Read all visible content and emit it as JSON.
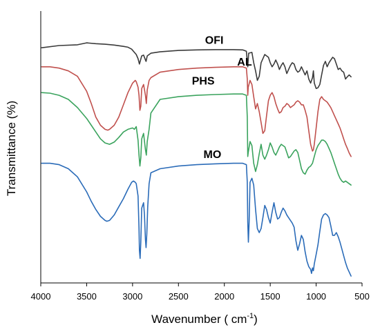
{
  "chart_data": {
    "type": "line",
    "title": "",
    "xlabel": "Wavenumber ( cm",
    "xlabel_sup": "-1",
    "xlabel_close": ")",
    "ylabel": "Transmittance (%)",
    "x_reversed": true,
    "xlim": [
      4000,
      500
    ],
    "xticks": [
      "4000",
      "3500",
      "3000",
      "2500",
      "2000",
      "1500",
      "1000",
      "500"
    ],
    "xtick_values": [
      4000,
      3500,
      3000,
      2500,
      2000,
      1500,
      1000,
      500
    ],
    "y_ticks_shown": false,
    "ylim": [
      0,
      100
    ],
    "grid": false,
    "legend": "none",
    "series": [
      {
        "name": "OFI",
        "color": "#3a3a3a",
        "label_at": [
          2110,
          88
        ],
        "x": [
          3990,
          3800,
          3600,
          3500,
          3400,
          3300,
          3200,
          3100,
          3050,
          3010,
          2960,
          2940,
          2925,
          2900,
          2880,
          2860,
          2853,
          2840,
          2800,
          2700,
          2500,
          2300,
          2100,
          1900,
          1800,
          1760,
          1745,
          1735,
          1700,
          1680,
          1660,
          1640,
          1620,
          1600,
          1560,
          1520,
          1500,
          1480,
          1460,
          1440,
          1420,
          1400,
          1380,
          1360,
          1340,
          1320,
          1300,
          1280,
          1260,
          1240,
          1220,
          1200,
          1180,
          1160,
          1140,
          1120,
          1100,
          1080,
          1060,
          1040,
          1030,
          1020,
          1000,
          980,
          960,
          940,
          920,
          900,
          880,
          860,
          840,
          820,
          800,
          780,
          760,
          740,
          720,
          700,
          680,
          660,
          640,
          620
        ],
        "y": [
          86.5,
          87.3,
          87.6,
          88.3,
          88.0,
          87.8,
          87.5,
          87.0,
          86.7,
          86.0,
          84.0,
          82.5,
          80.5,
          83.5,
          83.8,
          82.0,
          81.5,
          83.5,
          84.5,
          85.0,
          85.5,
          85.7,
          85.8,
          85.8,
          85.7,
          85.2,
          79.5,
          84.5,
          84.8,
          81.0,
          78.0,
          74.5,
          76.0,
          81.0,
          84.0,
          83.0,
          81.0,
          79.5,
          80.5,
          82.0,
          80.5,
          78.5,
          80.0,
          81.0,
          79.5,
          77.0,
          78.5,
          80.0,
          81.0,
          80.5,
          78.5,
          77.5,
          78.0,
          79.5,
          78.0,
          76.5,
          78.0,
          75.0,
          73.5,
          75.5,
          78.0,
          73.5,
          71.5,
          71.8,
          73.0,
          76.5,
          80.0,
          81.5,
          79.5,
          81.0,
          82.0,
          83.0,
          82.5,
          80.5,
          78.5,
          79.0,
          78.0,
          77.5,
          75.0,
          75.8,
          76.5,
          75.8
        ]
      },
      {
        "name": "AL",
        "color": "#c0504d",
        "label_at": [
          1780,
          80
        ],
        "x": [
          3990,
          3900,
          3800,
          3700,
          3600,
          3500,
          3450,
          3400,
          3350,
          3300,
          3270,
          3250,
          3200,
          3150,
          3100,
          3050,
          3000,
          2970,
          2960,
          2940,
          2930,
          2920,
          2910,
          2900,
          2880,
          2860,
          2850,
          2840,
          2820,
          2800,
          2700,
          2500,
          2300,
          2100,
          1900,
          1800,
          1760,
          1750,
          1745,
          1740,
          1720,
          1700,
          1680,
          1660,
          1640,
          1620,
          1600,
          1580,
          1560,
          1540,
          1520,
          1500,
          1480,
          1460,
          1440,
          1420,
          1400,
          1380,
          1360,
          1340,
          1320,
          1300,
          1280,
          1260,
          1240,
          1220,
          1200,
          1180,
          1160,
          1140,
          1120,
          1100,
          1080,
          1060,
          1040,
          1030,
          1020,
          1000,
          980,
          960,
          940,
          920,
          900,
          880,
          860,
          840,
          820,
          800,
          780,
          760,
          740,
          720,
          700,
          680,
          660,
          640,
          620
        ],
        "y": [
          79.5,
          79.5,
          79.0,
          78.0,
          76.0,
          70.5,
          66.0,
          61.0,
          58.0,
          56.5,
          56.2,
          56.5,
          58.0,
          61.0,
          65.5,
          70.0,
          73.5,
          74.5,
          74.0,
          72.0,
          69.0,
          63.5,
          65.0,
          71.5,
          73.0,
          69.0,
          66.0,
          71.0,
          74.5,
          75.5,
          77.5,
          78.5,
          79.0,
          79.3,
          79.5,
          79.5,
          79.0,
          75.0,
          69.0,
          72.0,
          74.5,
          73.0,
          68.5,
          64.0,
          66.0,
          63.0,
          59.0,
          55.0,
          56.0,
          61.5,
          67.0,
          69.0,
          70.0,
          68.5,
          66.0,
          64.0,
          62.5,
          63.0,
          64.5,
          65.0,
          66.0,
          65.5,
          64.5,
          65.0,
          65.5,
          66.5,
          67.0,
          66.5,
          65.5,
          65.5,
          63.5,
          61.0,
          56.0,
          51.0,
          48.5,
          49.0,
          51.0,
          57.0,
          63.0,
          67.5,
          68.5,
          67.5,
          67.0,
          66.5,
          65.5,
          64.5,
          63.0,
          61.5,
          60.0,
          58.5,
          57.0,
          55.0,
          53.0,
          51.0,
          49.5,
          47.8,
          46.5
        ]
      },
      {
        "name": "PHS",
        "color": "#3aa35d",
        "label_at": [
          2230,
          73
        ],
        "x": [
          3990,
          3900,
          3800,
          3700,
          3600,
          3500,
          3450,
          3400,
          3350,
          3300,
          3250,
          3200,
          3150,
          3100,
          3050,
          3000,
          2980,
          2960,
          2950,
          2940,
          2930,
          2920,
          2910,
          2900,
          2880,
          2860,
          2850,
          2840,
          2820,
          2800,
          2700,
          2500,
          2300,
          2100,
          1900,
          1800,
          1760,
          1750,
          1745,
          1740,
          1720,
          1700,
          1680,
          1660,
          1640,
          1620,
          1600,
          1580,
          1560,
          1540,
          1520,
          1500,
          1480,
          1460,
          1440,
          1420,
          1400,
          1380,
          1360,
          1340,
          1320,
          1300,
          1280,
          1260,
          1240,
          1220,
          1200,
          1180,
          1160,
          1140,
          1120,
          1100,
          1080,
          1060,
          1040,
          1020,
          1000,
          980,
          960,
          940,
          920,
          900,
          880,
          860,
          840,
          820,
          800,
          780,
          760,
          740,
          720,
          700,
          680,
          660,
          640,
          620
        ],
        "y": [
          70.0,
          69.8,
          69.0,
          67.5,
          64.5,
          60.5,
          58.0,
          55.5,
          53.0,
          51.5,
          51.0,
          51.8,
          53.5,
          55.5,
          56.5,
          57.0,
          56.5,
          57.5,
          55.0,
          52.5,
          47.0,
          43.0,
          46.0,
          53.0,
          55.0,
          49.0,
          47.0,
          52.0,
          56.5,
          62.5,
          67.5,
          68.5,
          69.0,
          69.3,
          69.5,
          69.5,
          69.0,
          61.0,
          46.5,
          48.0,
          52.0,
          50.5,
          44.0,
          41.0,
          43.5,
          47.5,
          51.0,
          47.0,
          45.5,
          47.0,
          49.0,
          51.5,
          50.0,
          48.0,
          47.0,
          48.5,
          50.0,
          51.0,
          50.5,
          50.0,
          48.0,
          46.0,
          46.5,
          47.5,
          48.5,
          49.0,
          48.0,
          45.0,
          42.0,
          40.5,
          40.0,
          41.5,
          42.5,
          43.0,
          44.0,
          46.5,
          49.0,
          50.5,
          51.5,
          52.5,
          52.5,
          52.0,
          51.0,
          49.5,
          48.0,
          46.0,
          44.0,
          42.0,
          40.0,
          38.5,
          37.5,
          37.0,
          37.5,
          37.0,
          36.5,
          36.0
        ]
      },
      {
        "name": "MO",
        "color": "#2a6bb8",
        "label_at": [
          2130,
          46
        ],
        "x": [
          3990,
          3900,
          3800,
          3700,
          3600,
          3500,
          3450,
          3400,
          3350,
          3300,
          3280,
          3250,
          3200,
          3150,
          3100,
          3050,
          3010,
          2990,
          2970,
          2960,
          2940,
          2930,
          2925,
          2918,
          2910,
          2900,
          2880,
          2870,
          2860,
          2853,
          2845,
          2835,
          2820,
          2800,
          2700,
          2500,
          2300,
          2100,
          1900,
          1800,
          1760,
          1750,
          1745,
          1738,
          1730,
          1720,
          1700,
          1680,
          1660,
          1640,
          1620,
          1600,
          1580,
          1560,
          1540,
          1520,
          1500,
          1480,
          1460,
          1440,
          1420,
          1400,
          1380,
          1360,
          1340,
          1320,
          1300,
          1280,
          1260,
          1240,
          1220,
          1200,
          1180,
          1160,
          1140,
          1120,
          1100,
          1080,
          1060,
          1050,
          1040,
          1030,
          1020,
          1000,
          980,
          960,
          940,
          920,
          900,
          880,
          860,
          840,
          820,
          800,
          780,
          760,
          740,
          720,
          700,
          680,
          660,
          640,
          620
        ],
        "y": [
          44.0,
          44.0,
          43.5,
          42.0,
          39.0,
          33.5,
          30.0,
          27.0,
          24.5,
          23.0,
          22.7,
          23.0,
          25.0,
          28.0,
          31.0,
          34.5,
          37.0,
          37.5,
          37.0,
          36.5,
          32.0,
          20.0,
          12.0,
          9.0,
          15.0,
          27.5,
          29.5,
          25.0,
          16.0,
          13.0,
          18.0,
          28.0,
          36.5,
          40.5,
          42.0,
          43.0,
          43.5,
          43.8,
          44.0,
          44.0,
          43.5,
          37.0,
          22.5,
          15.0,
          22.5,
          37.0,
          38.5,
          36.0,
          27.0,
          20.0,
          18.5,
          20.0,
          24.0,
          28.5,
          27.0,
          24.0,
          22.0,
          26.0,
          29.5,
          26.0,
          23.5,
          24.0,
          26.0,
          27.5,
          26.5,
          25.0,
          24.0,
          23.0,
          22.0,
          20.5,
          15.5,
          12.0,
          14.5,
          17.5,
          16.0,
          11.5,
          8.0,
          6.0,
          5.0,
          3.5,
          5.5,
          4.5,
          7.0,
          10.5,
          14.0,
          19.0,
          23.5,
          25.0,
          25.5,
          25.0,
          24.0,
          21.0,
          17.5,
          17.5,
          18.5,
          17.0,
          15.0,
          12.5,
          10.0,
          7.5,
          5.5,
          4.0,
          2.5
        ]
      }
    ]
  }
}
